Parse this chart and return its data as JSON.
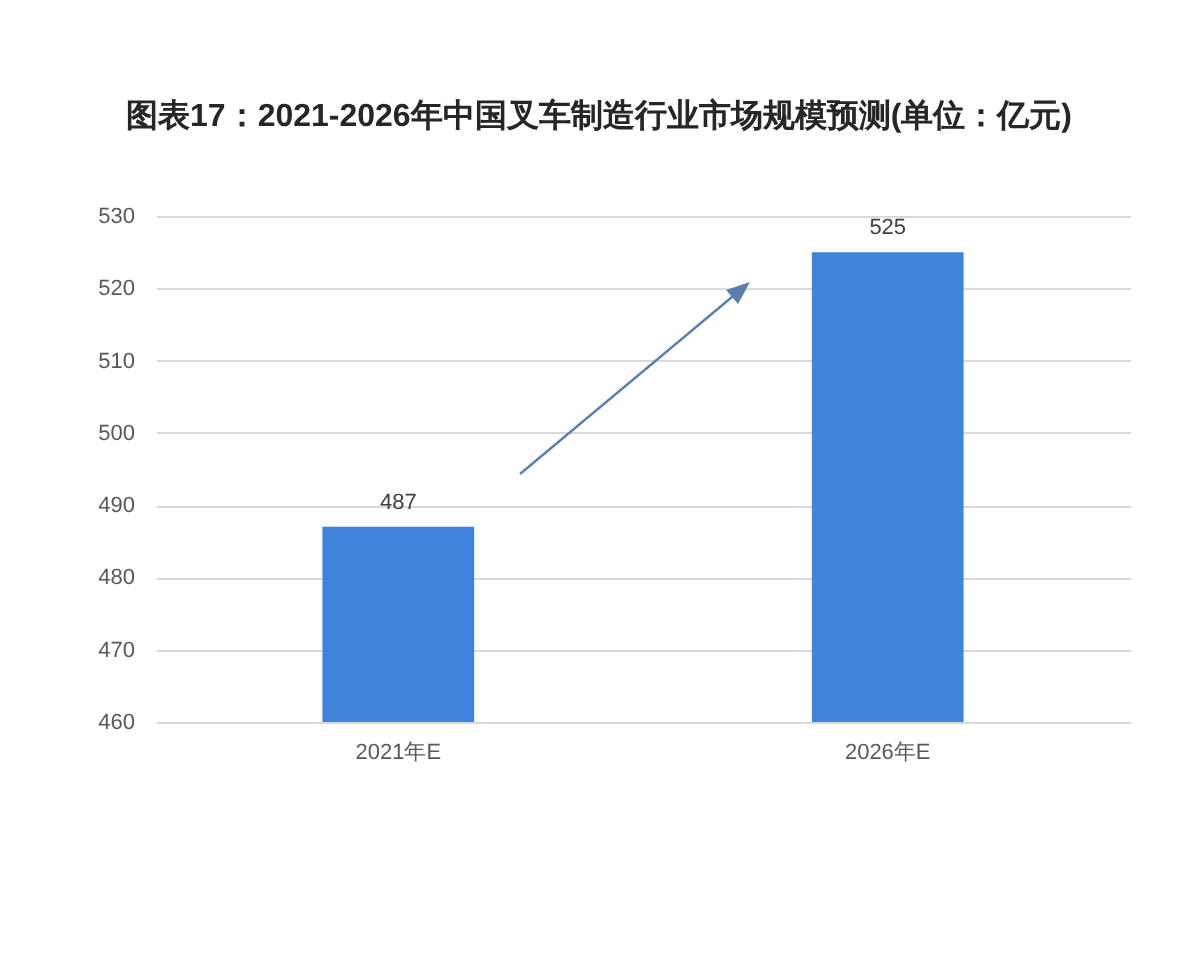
{
  "chart_data": {
    "type": "bar",
    "title": "图表17：2021-2026年中国叉车制造行业市场规模预测(单位：亿元)",
    "categories": [
      "2021年E",
      "2026年E"
    ],
    "values": [
      487,
      525
    ],
    "color": "#3f83dd",
    "ylim": [
      460,
      530
    ],
    "yticks": [
      460,
      470,
      480,
      490,
      500,
      510,
      520,
      530
    ],
    "grid": "y",
    "data_labels": true
  }
}
